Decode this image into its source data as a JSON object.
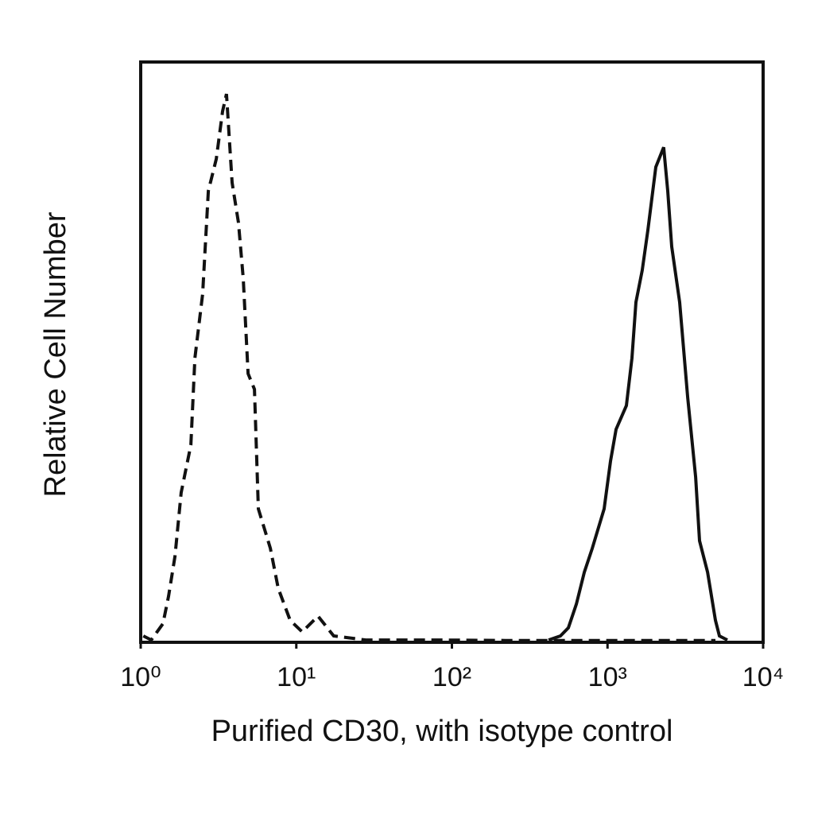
{
  "chart_data": {
    "type": "histogram-line",
    "xlabel": "Purified CD30, with isotype control",
    "ylabel": "Relative Cell Number",
    "xscale": "log",
    "xlim": [
      1,
      10000
    ],
    "xticks": [
      {
        "value": 1,
        "label": "10⁰"
      },
      {
        "value": 10,
        "label": "10¹"
      },
      {
        "value": 100,
        "label": "10²"
      },
      {
        "value": 1000,
        "label": "10³"
      },
      {
        "value": 10000,
        "label": "10⁴"
      }
    ],
    "ylim": [
      0,
      100
    ],
    "series": [
      {
        "color": "#111111",
        "dashed": true,
        "x": [
          1.04,
          1.17,
          1.39,
          1.51,
          1.66,
          1.82,
          2.1,
          2.23,
          2.5,
          2.72,
          3.06,
          3.36,
          3.56,
          3.87,
          4.25,
          4.56,
          4.9,
          5.38,
          5.7,
          6.81,
          7.65,
          9.13,
          10.9,
          13.8,
          17.4,
          27.9,
          80.5,
          261,
          470,
          1520,
          4940
        ],
        "values": [
          1.1,
          0.4,
          3.2,
          7.9,
          14.8,
          25.8,
          34.0,
          49.0,
          60.0,
          77.8,
          83.3,
          91.5,
          94.5,
          79.2,
          72.3,
          62.7,
          46.3,
          43.6,
          23.0,
          16.2,
          9.3,
          3.8,
          1.8,
          4.5,
          1.1,
          0.4,
          0.4,
          0.3,
          0.3,
          0.3,
          0.3
        ]
      },
      {
        "color": "#111111",
        "dashed": false,
        "x": [
          418,
          498,
          560,
          631,
          710,
          798,
          951,
          1045,
          1135,
          1322,
          1436,
          1523,
          1672,
          1816,
          2044,
          2297,
          2438,
          2585,
          2909,
          3273,
          3683,
          3902,
          4392,
          4940,
          5236,
          5890
        ],
        "values": [
          0.4,
          1.1,
          2.5,
          6.6,
          12.1,
          16.2,
          23.0,
          31.2,
          36.7,
          40.8,
          49.0,
          58.6,
          64.1,
          71.0,
          81.9,
          85.3,
          77.8,
          68.2,
          58.6,
          42.2,
          28.5,
          17.5,
          12.1,
          3.8,
          1.1,
          0.4
        ]
      }
    ]
  }
}
